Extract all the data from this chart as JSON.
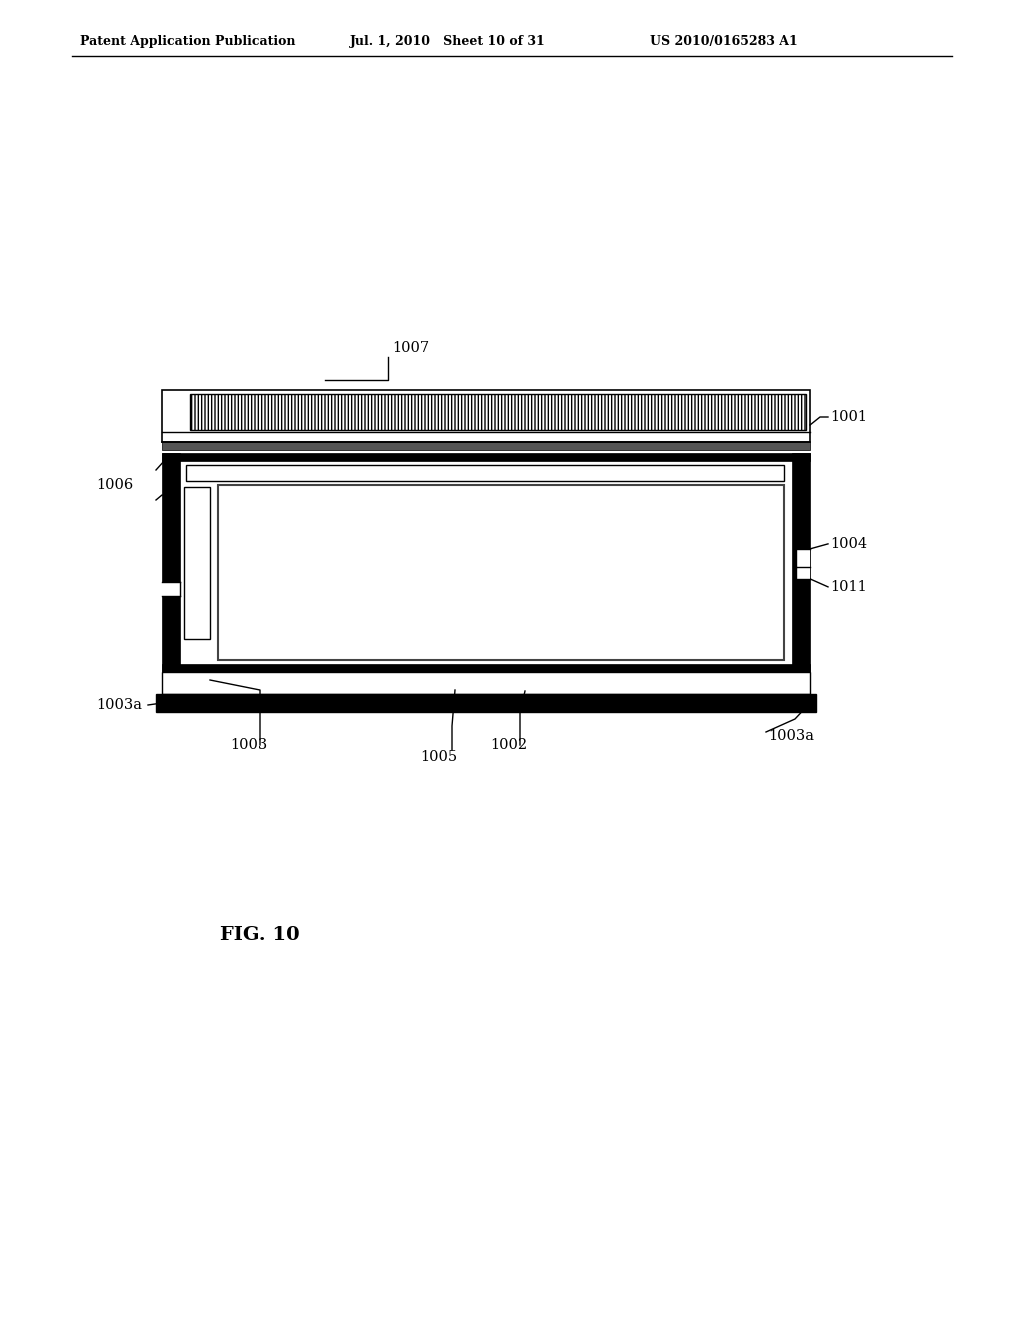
{
  "header_left": "Patent Application Publication",
  "header_mid": "Jul. 1, 2010   Sheet 10 of 31",
  "header_right": "US 2010/0165283 A1",
  "fig_label": "FIG. 10",
  "bg_color": "#ffffff",
  "line_color": "#000000"
}
